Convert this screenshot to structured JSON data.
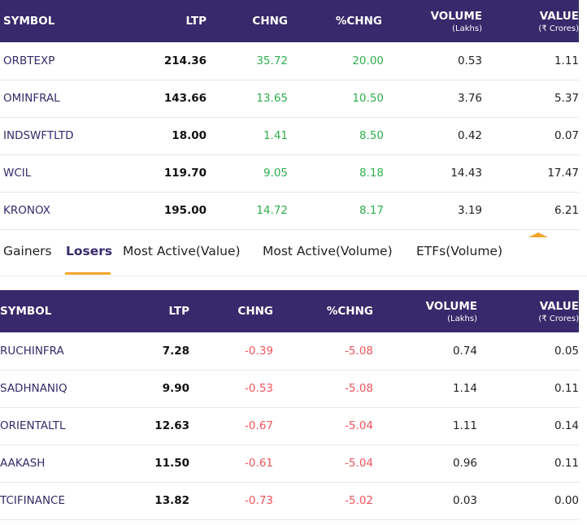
{
  "headers": {
    "symbol": "SYMBOL",
    "ltp": "LTP",
    "chng": "CHNG",
    "pchng": "%CHNG",
    "volume": "VOLUME",
    "volume_unit": "(Lakhs)",
    "value": "VALUE",
    "value_unit": "(₹ Crores)"
  },
  "gainers": [
    {
      "symbol": "ORBTEXP",
      "ltp": "214.36",
      "chng": "35.72",
      "pchng": "20.00",
      "volume": "0.53",
      "value": "1.11"
    },
    {
      "symbol": "OMINFRAL",
      "ltp": "143.66",
      "chng": "13.65",
      "pchng": "10.50",
      "volume": "3.76",
      "value": "5.37"
    },
    {
      "symbol": "INDSWFTLTD",
      "ltp": "18.00",
      "chng": "1.41",
      "pchng": "8.50",
      "volume": "0.42",
      "value": "0.07"
    },
    {
      "symbol": "WCIL",
      "ltp": "119.70",
      "chng": "9.05",
      "pchng": "8.18",
      "volume": "14.43",
      "value": "17.47"
    },
    {
      "symbol": "KRONOX",
      "ltp": "195.00",
      "chng": "14.72",
      "pchng": "8.17",
      "volume": "3.19",
      "value": "6.21"
    }
  ],
  "tabs": [
    "Gainers",
    "Losers",
    "Most Active(Value)",
    "Most Active(Volume)",
    "ETFs(Volume)"
  ],
  "active_tab": "Losers",
  "losers": [
    {
      "symbol": "RUCHINFRA",
      "ltp": "7.28",
      "chng": "-0.39",
      "pchng": "-5.08",
      "volume": "0.74",
      "value": "0.05"
    },
    {
      "symbol": "SADHNANIQ",
      "ltp": "9.90",
      "chng": "-0.53",
      "pchng": "-5.08",
      "volume": "1.14",
      "value": "0.11"
    },
    {
      "symbol": "ORIENTALTL",
      "ltp": "12.63",
      "chng": "-0.67",
      "pchng": "-5.04",
      "volume": "1.11",
      "value": "0.14"
    },
    {
      "symbol": "AAKASH",
      "ltp": "11.50",
      "chng": "-0.61",
      "pchng": "-5.04",
      "volume": "0.96",
      "value": "0.11"
    },
    {
      "symbol": "TCIFINANCE",
      "ltp": "13.82",
      "chng": "-0.73",
      "pchng": "-5.02",
      "volume": "0.03",
      "value": "0.00"
    }
  ],
  "colors": {
    "header_bg": "#37296b",
    "positive": "#2fae4e",
    "negative": "#f1555c",
    "accent": "#f2a52b"
  }
}
